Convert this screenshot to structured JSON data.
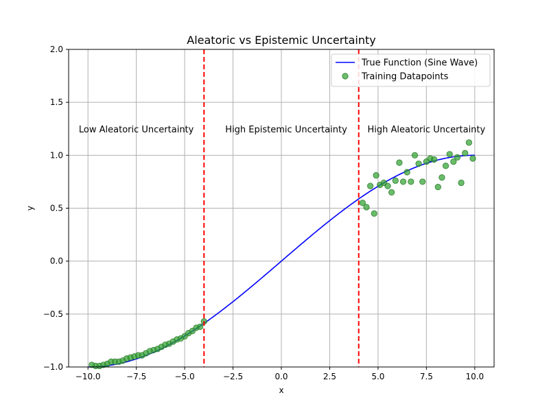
{
  "chart_data": {
    "type": "line",
    "title": "Aleatoric vs Epistemic Uncertainty",
    "xlabel": "x",
    "ylabel": "y",
    "xlim": [
      -11,
      11
    ],
    "ylim": [
      -1.0,
      2.0
    ],
    "xticks": [
      -10.0,
      -7.5,
      -5.0,
      -2.5,
      0.0,
      2.5,
      5.0,
      7.5,
      10.0
    ],
    "xtick_labels": [
      "−10.0",
      "−7.5",
      "−5.0",
      "−2.5",
      "0.0",
      "2.5",
      "5.0",
      "7.5",
      "10.0"
    ],
    "yticks": [
      -1.0,
      -0.5,
      0.0,
      0.5,
      1.0,
      1.5,
      2.0
    ],
    "ytick_labels": [
      "−1.0",
      "−0.5",
      "0.0",
      "0.5",
      "1.0",
      "1.5",
      "2.0"
    ],
    "grid": true,
    "legend_position": "upper right",
    "series": [
      {
        "name": "True Function (Sine Wave)",
        "kind": "line",
        "function": "sin(pi*x/20)",
        "x_range": [
          -10,
          10
        ],
        "color": "#0000ff"
      },
      {
        "name": "Training Datapoints",
        "kind": "scatter",
        "color": "#2ca02c",
        "points": [
          [
            -9.8,
            -0.98
          ],
          [
            -9.6,
            -0.99
          ],
          [
            -9.4,
            -0.99
          ],
          [
            -9.2,
            -0.98
          ],
          [
            -9.0,
            -0.97
          ],
          [
            -8.8,
            -0.95
          ],
          [
            -8.6,
            -0.95
          ],
          [
            -8.4,
            -0.95
          ],
          [
            -8.2,
            -0.94
          ],
          [
            -8.0,
            -0.92
          ],
          [
            -7.8,
            -0.91
          ],
          [
            -7.6,
            -0.9
          ],
          [
            -7.4,
            -0.89
          ],
          [
            -7.2,
            -0.89
          ],
          [
            -7.0,
            -0.87
          ],
          [
            -6.8,
            -0.85
          ],
          [
            -6.6,
            -0.84
          ],
          [
            -6.4,
            -0.83
          ],
          [
            -6.2,
            -0.81
          ],
          [
            -6.0,
            -0.79
          ],
          [
            -5.8,
            -0.78
          ],
          [
            -5.6,
            -0.76
          ],
          [
            -5.4,
            -0.74
          ],
          [
            -5.2,
            -0.73
          ],
          [
            -5.0,
            -0.71
          ],
          [
            -4.8,
            -0.68
          ],
          [
            -4.6,
            -0.66
          ],
          [
            -4.4,
            -0.63
          ],
          [
            -4.2,
            -0.62
          ],
          [
            -4.0,
            -0.57
          ],
          [
            4.2,
            0.55
          ],
          [
            4.4,
            0.51
          ],
          [
            4.6,
            0.71
          ],
          [
            4.8,
            0.45
          ],
          [
            4.9,
            0.81
          ],
          [
            5.1,
            0.72
          ],
          [
            5.3,
            0.74
          ],
          [
            5.5,
            0.71
          ],
          [
            5.7,
            0.65
          ],
          [
            5.9,
            0.76
          ],
          [
            6.1,
            0.93
          ],
          [
            6.3,
            0.75
          ],
          [
            6.5,
            0.84
          ],
          [
            6.7,
            0.75
          ],
          [
            6.9,
            1.0
          ],
          [
            7.1,
            0.92
          ],
          [
            7.3,
            0.75
          ],
          [
            7.5,
            0.94
          ],
          [
            7.7,
            0.97
          ],
          [
            7.9,
            0.96
          ],
          [
            8.1,
            0.7
          ],
          [
            8.3,
            0.79
          ],
          [
            8.5,
            0.9
          ],
          [
            8.7,
            1.01
          ],
          [
            8.9,
            0.94
          ],
          [
            9.1,
            0.98
          ],
          [
            9.3,
            0.74
          ],
          [
            9.5,
            1.02
          ],
          [
            9.7,
            1.12
          ],
          [
            9.9,
            0.97
          ]
        ]
      }
    ],
    "vlines": [
      {
        "x": -4,
        "color": "#ff0000",
        "style": "dashed"
      },
      {
        "x": 4,
        "color": "#ff0000",
        "style": "dashed"
      }
    ],
    "annotations": [
      {
        "text": "Low Aleatoric Uncertainty",
        "x": -7.5,
        "y": 1.25
      },
      {
        "text": "High Epistemic Uncertainty",
        "x": 0.25,
        "y": 1.25
      },
      {
        "text": "High Aleatoric Uncertainty",
        "x": 7.5,
        "y": 1.25
      }
    ]
  }
}
